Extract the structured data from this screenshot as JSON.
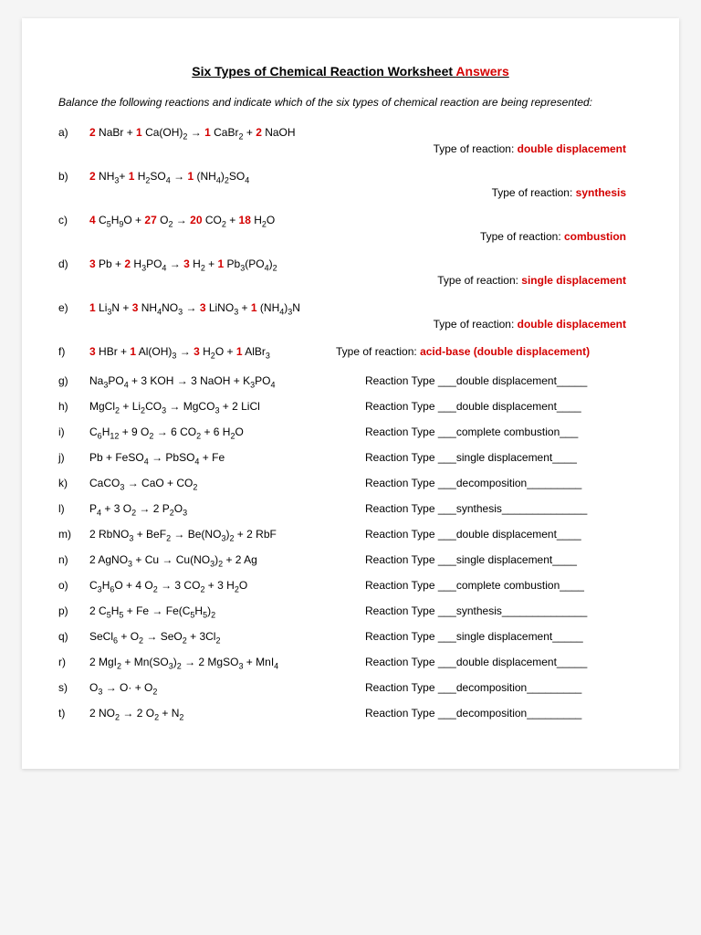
{
  "title_main": "Six Types of Chemical Reaction Worksheet ",
  "title_answers": "Answers",
  "instructions": "Balance the following reactions and indicate which of the six types of chemical reaction are being represented:",
  "type_label": "Type of reaction: ",
  "rtype_label": "Reaction Type ___",
  "sectionA": [
    {
      "letter": "a)",
      "coef": [
        "2",
        "1",
        "1",
        "2"
      ],
      "parts": [
        " NaBr + ",
        " Ca(OH)",
        " CaBr",
        " NaOH"
      ],
      "subs": [
        "",
        "2",
        "2",
        ""
      ],
      "arrowAfter": 1,
      "type": "double displacement"
    },
    {
      "letter": "b)",
      "coef": [
        "2",
        "1",
        "1"
      ],
      "parts": [
        " NH",
        " H",
        " (NH"
      ],
      "subs": [
        "3",
        "2",
        "4"
      ],
      "extra": [
        "+ ",
        "SO",
        "4",
        " ",
        " ",
        "4",
        ")",
        "2",
        "SO",
        "4"
      ],
      "type": "synthesis"
    },
    {
      "letter": "c)",
      "coef": [
        "4",
        "27",
        "20",
        "18"
      ],
      "type": "combustion"
    },
    {
      "letter": "d)",
      "coef": [
        "3",
        "2",
        "3",
        "1"
      ],
      "type": "single displacement"
    },
    {
      "letter": "e)",
      "coef": [
        "1",
        "3",
        "3",
        "1"
      ],
      "type": "double displacement"
    },
    {
      "letter": "f)",
      "coef": [
        "3",
        "1",
        "3",
        "1"
      ],
      "type": "acid-base (double displacement)"
    }
  ],
  "sectionB": [
    {
      "letter": "g)",
      "eq": "Na3PO4 + 3 KOH → 3 NaOH + K3PO4",
      "type": "double displacement",
      "trail": "_____"
    },
    {
      "letter": "h)",
      "eq": "MgCl2 + Li2CO3 → MgCO3 + 2 LiCl",
      "type": "double displacement",
      "trail": "____"
    },
    {
      "letter": "i)",
      "eq": "C6H12 + 9 O2 → 6 CO2 + 6 H2O",
      "type": "complete combustion",
      "trail": "___"
    },
    {
      "letter": "j)",
      "eq": "Pb + FeSO4 → PbSO4 + Fe",
      "type": "single displacement",
      "trail": "____"
    },
    {
      "letter": "k)",
      "eq": "CaCO3 → CaO + CO2",
      "type": "decomposition",
      "trail": "_________"
    },
    {
      "letter": "l)",
      "eq": "P4 +  3 O2 → 2 P2O3",
      "type": "synthesis",
      "trail": "______________"
    },
    {
      "letter": "m)",
      "eq": "2 RbNO3 + BeF2 → Be(NO3)2 + 2 RbF",
      "type": "double displacement",
      "trail": "____"
    },
    {
      "letter": "n)",
      "eq": "2 AgNO3 + Cu → Cu(NO3)2 + 2 Ag",
      "type": "single displacement",
      "trail": "____"
    },
    {
      "letter": "o)",
      "eq": "C3H6O + 4 O2 → 3 CO2 + 3 H2O",
      "type": "complete combustion",
      "trail": "____"
    },
    {
      "letter": "p)",
      "eq": "2 C5H5 + Fe → Fe(C5H5)2",
      "type": "synthesis",
      "trail": "______________"
    },
    {
      "letter": "q)",
      "eq": "SeCl6 + O2 → SeO2 + 3Cl2",
      "type": "single displacement",
      "trail": "_____"
    },
    {
      "letter": "r)",
      "eq": "2 MgI2 + Mn(SO3)2 → 2 MgSO3 + MnI4",
      "type": "double displacement",
      "trail": "_____"
    },
    {
      "letter": "s)",
      "eq": "O3 → O· + O2",
      "type": "decomposition",
      "trail": "_________"
    },
    {
      "letter": "t)",
      "eq": "2 NO2 → 2 O2 + N2",
      "type": "decomposition",
      "trail": "_________"
    }
  ],
  "colors": {
    "answer": "#d40000",
    "text": "#000000",
    "bg": "#ffffff"
  }
}
